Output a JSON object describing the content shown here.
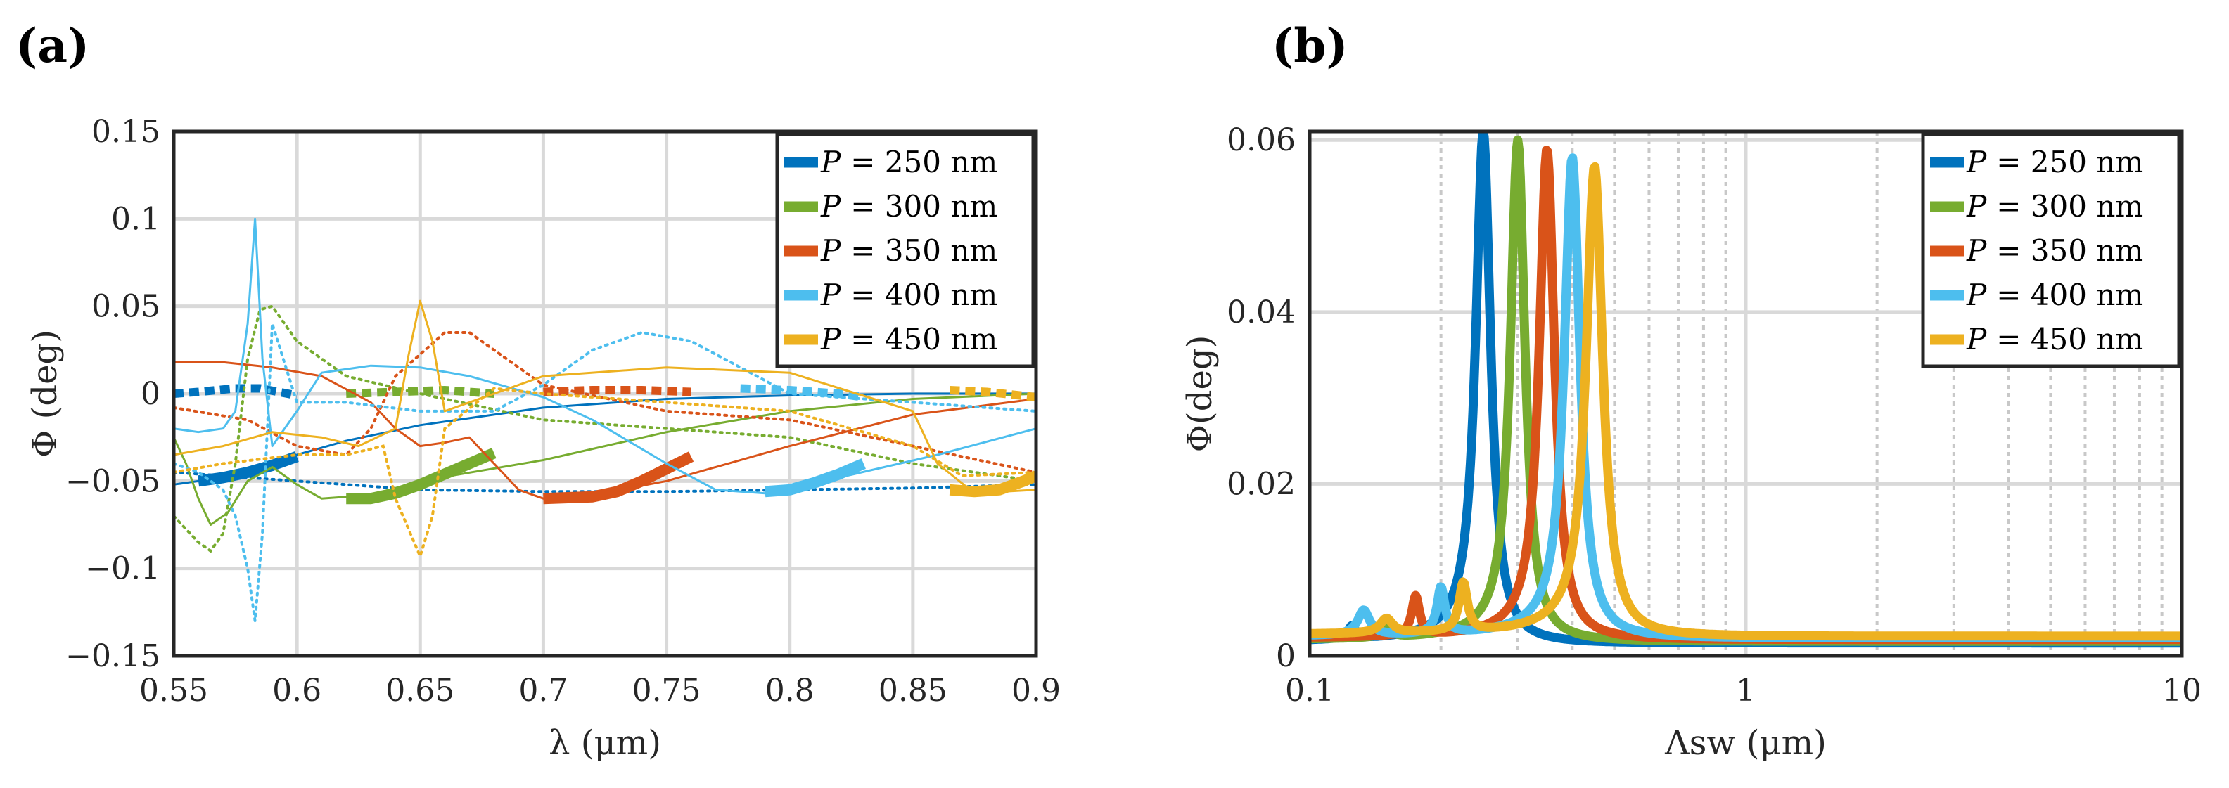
{
  "chart_data": [
    {
      "panel_label": "(a)",
      "type": "line",
      "xlabel": "λ (μm)",
      "ylabel": "Φ (deg)",
      "xlim": [
        0.55,
        0.9
      ],
      "ylim": [
        -0.15,
        0.15
      ],
      "x_ticks": [
        0.55,
        0.6,
        0.65,
        0.7,
        0.75,
        0.8,
        0.85,
        0.9
      ],
      "x_tick_labels": [
        "0.55",
        "0.6",
        "0.65",
        "0.7",
        "0.75",
        "0.8",
        "0.85",
        "0.9"
      ],
      "y_ticks": [
        -0.15,
        -0.1,
        -0.05,
        0,
        0.05,
        0.1,
        0.15
      ],
      "y_tick_labels": [
        "−0.15",
        "−0.1",
        "−0.05",
        "0",
        "0.05",
        "0.1",
        "0.15"
      ],
      "grid": true,
      "legend_position": "top-right",
      "series": [
        {
          "name": "P = 250 nm",
          "label_var": "P",
          "label_rest": "= 250 nm",
          "color": "#0072BD",
          "thin": [
            [
              0.55,
              -0.052
            ],
            [
              0.56,
              -0.05
            ],
            [
              0.58,
              -0.044
            ],
            [
              0.6,
              -0.035
            ],
            [
              0.62,
              -0.027
            ],
            [
              0.65,
              -0.018
            ],
            [
              0.7,
              -0.008
            ],
            [
              0.75,
              -0.003
            ],
            [
              0.8,
              -0.001
            ],
            [
              0.85,
              0.0
            ],
            [
              0.9,
              0.0
            ]
          ],
          "dotted": [
            [
              0.55,
              -0.045
            ],
            [
              0.58,
              -0.048
            ],
            [
              0.6,
              -0.05
            ],
            [
              0.65,
              -0.055
            ],
            [
              0.7,
              -0.056
            ],
            [
              0.75,
              -0.056
            ],
            [
              0.8,
              -0.055
            ],
            [
              0.85,
              -0.054
            ],
            [
              0.9,
              -0.052
            ]
          ],
          "thick": [
            [
              0.56,
              -0.05
            ],
            [
              0.57,
              -0.048
            ],
            [
              0.58,
              -0.045
            ],
            [
              0.59,
              -0.041
            ],
            [
              0.6,
              -0.036
            ]
          ],
          "dashed": [
            [
              0.55,
              0.0
            ],
            [
              0.56,
              0.001
            ],
            [
              0.575,
              0.003
            ],
            [
              0.585,
              0.003
            ],
            [
              0.6,
              -0.001
            ]
          ]
        },
        {
          "name": "P = 300 nm",
          "label_var": "P",
          "label_rest": "= 300 nm",
          "color": "#77AC30",
          "thin": [
            [
              0.55,
              -0.025
            ],
            [
              0.555,
              -0.04
            ],
            [
              0.56,
              -0.06
            ],
            [
              0.565,
              -0.075
            ],
            [
              0.572,
              -0.068
            ],
            [
              0.58,
              -0.05
            ],
            [
              0.59,
              -0.042
            ],
            [
              0.6,
              -0.052
            ],
            [
              0.61,
              -0.06
            ],
            [
              0.63,
              -0.058
            ],
            [
              0.65,
              -0.05
            ],
            [
              0.7,
              -0.038
            ],
            [
              0.75,
              -0.022
            ],
            [
              0.8,
              -0.01
            ],
            [
              0.85,
              -0.003
            ],
            [
              0.9,
              0.0
            ]
          ],
          "dotted": [
            [
              0.55,
              -0.07
            ],
            [
              0.56,
              -0.085
            ],
            [
              0.565,
              -0.09
            ],
            [
              0.57,
              -0.08
            ],
            [
              0.575,
              -0.04
            ],
            [
              0.58,
              0.02
            ],
            [
              0.585,
              0.048
            ],
            [
              0.59,
              0.05
            ],
            [
              0.6,
              0.03
            ],
            [
              0.62,
              0.01
            ],
            [
              0.65,
              0.0
            ],
            [
              0.7,
              -0.015
            ],
            [
              0.75,
              -0.02
            ],
            [
              0.8,
              -0.025
            ],
            [
              0.85,
              -0.04
            ],
            [
              0.9,
              -0.05
            ]
          ],
          "thick": [
            [
              0.62,
              -0.06
            ],
            [
              0.63,
              -0.06
            ],
            [
              0.64,
              -0.057
            ],
            [
              0.65,
              -0.052
            ],
            [
              0.66,
              -0.046
            ],
            [
              0.67,
              -0.04
            ],
            [
              0.68,
              -0.034
            ]
          ],
          "dashed": [
            [
              0.62,
              0.0
            ],
            [
              0.64,
              0.001
            ],
            [
              0.66,
              0.002
            ],
            [
              0.68,
              0.0
            ]
          ]
        },
        {
          "name": "P = 350 nm",
          "label_var": "P",
          "label_rest": "= 350 nm",
          "color": "#D95319",
          "thin": [
            [
              0.55,
              0.018
            ],
            [
              0.57,
              0.018
            ],
            [
              0.59,
              0.015
            ],
            [
              0.61,
              0.01
            ],
            [
              0.63,
              -0.005
            ],
            [
              0.64,
              -0.02
            ],
            [
              0.65,
              -0.03
            ],
            [
              0.66,
              -0.028
            ],
            [
              0.67,
              -0.025
            ],
            [
              0.68,
              -0.04
            ],
            [
              0.69,
              -0.055
            ],
            [
              0.7,
              -0.06
            ],
            [
              0.72,
              -0.058
            ],
            [
              0.75,
              -0.05
            ],
            [
              0.8,
              -0.03
            ],
            [
              0.85,
              -0.012
            ],
            [
              0.9,
              -0.003
            ]
          ],
          "dotted": [
            [
              0.55,
              -0.008
            ],
            [
              0.58,
              -0.015
            ],
            [
              0.6,
              -0.03
            ],
            [
              0.62,
              -0.035
            ],
            [
              0.63,
              -0.02
            ],
            [
              0.64,
              0.01
            ],
            [
              0.66,
              0.035
            ],
            [
              0.67,
              0.035
            ],
            [
              0.69,
              0.015
            ],
            [
              0.7,
              0.005
            ],
            [
              0.75,
              -0.01
            ],
            [
              0.8,
              -0.015
            ],
            [
              0.85,
              -0.03
            ],
            [
              0.9,
              -0.045
            ]
          ],
          "thick": [
            [
              0.7,
              -0.06
            ],
            [
              0.72,
              -0.059
            ],
            [
              0.73,
              -0.056
            ],
            [
              0.74,
              -0.05
            ],
            [
              0.75,
              -0.043
            ],
            [
              0.76,
              -0.036
            ]
          ],
          "dashed": [
            [
              0.7,
              0.001
            ],
            [
              0.72,
              0.002
            ],
            [
              0.74,
              0.002
            ],
            [
              0.76,
              0.001
            ]
          ]
        },
        {
          "name": "P = 400 nm",
          "label_var": "P",
          "label_rest": "= 400 nm",
          "color": "#4DBEEE",
          "thin": [
            [
              0.55,
              -0.02
            ],
            [
              0.56,
              -0.022
            ],
            [
              0.57,
              -0.02
            ],
            [
              0.575,
              -0.01
            ],
            [
              0.58,
              0.04
            ],
            [
              0.583,
              0.1
            ],
            [
              0.586,
              0.02
            ],
            [
              0.59,
              -0.03
            ],
            [
              0.6,
              -0.01
            ],
            [
              0.61,
              0.012
            ],
            [
              0.63,
              0.016
            ],
            [
              0.65,
              0.015
            ],
            [
              0.67,
              0.01
            ],
            [
              0.7,
              -0.002
            ],
            [
              0.72,
              -0.015
            ],
            [
              0.75,
              -0.04
            ],
            [
              0.77,
              -0.055
            ],
            [
              0.79,
              -0.057
            ],
            [
              0.82,
              -0.048
            ],
            [
              0.86,
              -0.035
            ],
            [
              0.9,
              -0.02
            ]
          ],
          "dotted": [
            [
              0.55,
              -0.04
            ],
            [
              0.56,
              -0.045
            ],
            [
              0.57,
              -0.055
            ],
            [
              0.575,
              -0.07
            ],
            [
              0.58,
              -0.1
            ],
            [
              0.583,
              -0.13
            ],
            [
              0.586,
              -0.08
            ],
            [
              0.59,
              0.04
            ],
            [
              0.6,
              -0.005
            ],
            [
              0.62,
              -0.005
            ],
            [
              0.65,
              -0.01
            ],
            [
              0.68,
              -0.01
            ],
            [
              0.7,
              0.005
            ],
            [
              0.72,
              0.025
            ],
            [
              0.74,
              0.035
            ],
            [
              0.76,
              0.03
            ],
            [
              0.78,
              0.015
            ],
            [
              0.8,
              0.0
            ],
            [
              0.85,
              -0.005
            ],
            [
              0.9,
              -0.01
            ]
          ],
          "thick": [
            [
              0.79,
              -0.056
            ],
            [
              0.8,
              -0.055
            ],
            [
              0.81,
              -0.051
            ],
            [
              0.82,
              -0.046
            ],
            [
              0.83,
              -0.04
            ]
          ],
          "dashed": [
            [
              0.78,
              0.003
            ],
            [
              0.8,
              0.002
            ],
            [
              0.82,
              0.0
            ],
            [
              0.83,
              -0.002
            ]
          ]
        },
        {
          "name": "P = 450 nm",
          "label_var": "P",
          "label_rest": "= 450 nm",
          "color": "#EDB120",
          "thin": [
            [
              0.55,
              -0.035
            ],
            [
              0.57,
              -0.03
            ],
            [
              0.59,
              -0.022
            ],
            [
              0.61,
              -0.025
            ],
            [
              0.625,
              -0.03
            ],
            [
              0.64,
              -0.02
            ],
            [
              0.645,
              0.02
            ],
            [
              0.65,
              0.053
            ],
            [
              0.655,
              0.03
            ],
            [
              0.66,
              -0.01
            ],
            [
              0.67,
              -0.005
            ],
            [
              0.7,
              0.01
            ],
            [
              0.75,
              0.015
            ],
            [
              0.8,
              0.012
            ],
            [
              0.85,
              -0.01
            ],
            [
              0.86,
              -0.04
            ],
            [
              0.875,
              -0.057
            ],
            [
              0.9,
              -0.055
            ]
          ],
          "dotted": [
            [
              0.55,
              -0.045
            ],
            [
              0.57,
              -0.04
            ],
            [
              0.6,
              -0.035
            ],
            [
              0.62,
              -0.035
            ],
            [
              0.635,
              -0.03
            ],
            [
              0.64,
              -0.06
            ],
            [
              0.65,
              -0.093
            ],
            [
              0.655,
              -0.07
            ],
            [
              0.66,
              -0.02
            ],
            [
              0.68,
              0.003
            ],
            [
              0.7,
              0.0
            ],
            [
              0.75,
              -0.005
            ],
            [
              0.8,
              -0.01
            ],
            [
              0.85,
              -0.03
            ],
            [
              0.87,
              -0.047
            ],
            [
              0.9,
              -0.045
            ]
          ],
          "thick": [
            [
              0.865,
              -0.055
            ],
            [
              0.875,
              -0.056
            ],
            [
              0.885,
              -0.055
            ],
            [
              0.895,
              -0.05
            ],
            [
              0.9,
              -0.047
            ]
          ],
          "dashed": [
            [
              0.865,
              0.002
            ],
            [
              0.88,
              0.001
            ],
            [
              0.9,
              -0.002
            ]
          ]
        }
      ]
    },
    {
      "panel_label": "(b)",
      "type": "line",
      "xscale": "log",
      "xlabel": "Λsw (μm)",
      "ylabel": "Φ(deg)",
      "xlim": [
        0.1,
        10
      ],
      "ylim": [
        0,
        0.061
      ],
      "x_ticks": [
        0.1,
        1,
        10
      ],
      "x_tick_labels": [
        "0.1",
        "1",
        "10"
      ],
      "y_ticks": [
        0,
        0.02,
        0.04,
        0.06
      ],
      "y_tick_labels": [
        "0",
        "0.02",
        "0.04",
        "0.06"
      ],
      "grid": true,
      "legend_position": "top-right",
      "series": [
        {
          "name": "P = 250 nm",
          "label_var": "P",
          "label_rest": "= 250 nm",
          "color": "#0072BD",
          "peak_x": 0.25,
          "peak_y": 0.061,
          "width": 0.012,
          "baseline": 0.0015,
          "side_peaks": [
            [
              0.125,
              0.003
            ]
          ]
        },
        {
          "name": "P = 300 nm",
          "label_var": "P",
          "label_rest": "= 300 nm",
          "color": "#77AC30",
          "peak_x": 0.3,
          "peak_y": 0.06,
          "width": 0.014,
          "baseline": 0.0017,
          "side_peaks": [
            [
              0.15,
              0.0035
            ]
          ]
        },
        {
          "name": "P = 350 nm",
          "label_var": "P",
          "label_rest": "= 350 nm",
          "color": "#D95319",
          "peak_x": 0.35,
          "peak_y": 0.059,
          "width": 0.017,
          "baseline": 0.0019,
          "side_peaks": [
            [
              0.175,
              0.0065
            ]
          ]
        },
        {
          "name": "P = 400 nm",
          "label_var": "P",
          "label_rest": "= 400 nm",
          "color": "#4DBEEE",
          "peak_x": 0.4,
          "peak_y": 0.058,
          "width": 0.02,
          "baseline": 0.0021,
          "side_peaks": [
            [
              0.133,
              0.005
            ],
            [
              0.2,
              0.0075
            ]
          ]
        },
        {
          "name": "P = 450 nm",
          "label_var": "P",
          "label_rest": "= 450 nm",
          "color": "#EDB120",
          "peak_x": 0.45,
          "peak_y": 0.057,
          "width": 0.024,
          "baseline": 0.0023,
          "side_peaks": [
            [
              0.15,
              0.004
            ],
            [
              0.225,
              0.008
            ]
          ]
        }
      ]
    }
  ]
}
